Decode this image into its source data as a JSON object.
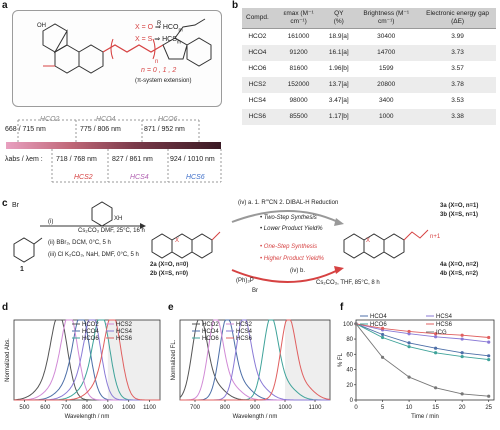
{
  "panels": {
    "a": "a",
    "b": "b",
    "c": "c",
    "d": "d",
    "e": "e",
    "f": "f"
  },
  "panel_a": {
    "substituent": "R",
    "atom_x_eq_o": "X = O",
    "atom_x_eq_s": "X = S",
    "arrow": "⇒",
    "hcom_label": "HCO",
    "hcsm_label": "HCS",
    "hcom_sub": "m",
    "hcsm_sub": "m",
    "n_values": "n = 0 , 1 , 2",
    "ext_note": "(π-system extension)",
    "oh": "OH",
    "n_sub": "n",
    "wl_label_top": "668 / 715 nm",
    "wl_label_o4": "775 / 806 nm",
    "wl_label_o6": "871 / 952 nm",
    "label_o2": "HCO2",
    "label_o4": "HCO4",
    "label_o6": "HCO6",
    "lambda_label": "λabs / λem :",
    "wl_s2": "718 / 768 nm",
    "wl_s4": "827 / 861 nm",
    "wl_s6": "924 / 1010 nm",
    "label_s2": "HCS2",
    "label_s4": "HCS4",
    "label_s6": "HCS6"
  },
  "table": {
    "headers": [
      "Compd.",
      "εmax (M⁻¹ cm⁻¹)",
      "QY (%)",
      "Brightness (M⁻¹ cm⁻¹)",
      "Electronic energy gap (ΔE)"
    ],
    "rows": [
      [
        "HCO2",
        "161000",
        "18.9[a]",
        "30400",
        "3.99"
      ],
      [
        "HCO4",
        "91200",
        "16.1[a]",
        "14700",
        "3.73"
      ],
      [
        "HCO6",
        "81600",
        "1.96[b]",
        "1599",
        "3.57"
      ],
      [
        "HCS2",
        "152000",
        "13.7[a]",
        "20800",
        "3.78"
      ],
      [
        "HCS4",
        "98000",
        "3.47[a]",
        "3400",
        "3.53"
      ],
      [
        "HCS6",
        "85500",
        "1.17[b]",
        "1000",
        "3.38"
      ]
    ]
  },
  "panel_c": {
    "compound1": "1",
    "br": "Br",
    "step_i": "(i)",
    "step_i_cond": "Cs₂CO₃  DMF, 25°C, 16 h",
    "step_ii": "(ii)  BBr₃, DCM, 0°C, 5 h",
    "step_iii": "(iii)     Cl  K₂CO₃, NaH, DMF, 0°C, 5 h",
    "xh": "XH",
    "route_iva": "(iv) a. 1.  R′″CN   2. DIBAL-H Reduction",
    "two_step": "Two-Step Synthesis",
    "lower_yield": "Lower Product Yield%",
    "one_step": "One-Step Synthesis",
    "higher_yield": "Higher Product Yield%",
    "route_ivb": "(iv) b.",
    "ivb_cond": "Cs₂CO₃, THF, 85°C, 8 h",
    "ph3p": "(Ph)₃P",
    "br_minus": "Br",
    "cmp_2a": "2a (X=O, n=0)",
    "cmp_2b": "2b (X=S, n=0)",
    "cmp_3a": "3a (X=O, n=1)",
    "cmp_3b": "3b (X=S, n=1)",
    "cmp_4a": "4a (X=O, n=2)",
    "cmp_4b": "4b (X=S, n=2)",
    "n1": "n+1",
    "x_atom": "X",
    "n_atom": "n"
  },
  "panel_d": {
    "ylabel": "Normalized Abs.",
    "xlabel": "Wavelength / nm",
    "legend": [
      "HCO2",
      "HCO4",
      "HCO6",
      "HCS2",
      "HCS4",
      "HCS6"
    ],
    "xticks": [
      "500",
      "600",
      "700",
      "800",
      "900",
      "1000",
      "1100"
    ]
  },
  "panel_e": {
    "ylabel": "Normalized FL.",
    "xlabel": "Wavelength / nm",
    "legend": [
      "HCO2",
      "HCO4",
      "HCO6",
      "HCS2",
      "HCS4",
      "HCS6"
    ],
    "xticks": [
      "700",
      "800",
      "900",
      "1000",
      "1100"
    ]
  },
  "panel_f": {
    "ylabel": "% FL",
    "xlabel": "Time / min",
    "legend": [
      "HCO4",
      "HCO6",
      "HCS4",
      "HCS6",
      "ICG"
    ],
    "xticks": [
      "0",
      "5",
      "10",
      "15",
      "20",
      "25"
    ],
    "yticks": [
      "0",
      "20",
      "40",
      "60",
      "80",
      "100"
    ]
  },
  "colors": {
    "HCO2": "#555555",
    "HCO4": "#4d6fa8",
    "HCO6": "#3fa39a",
    "HCS2": "#d18ad6",
    "HCS4": "#8a7ad6",
    "HCS6": "#e06060",
    "ICG": "#777777"
  },
  "chart_data": [
    {
      "type": "line",
      "panel": "d",
      "xlabel": "Wavelength / nm",
      "ylabel": "Normalized Abs.",
      "xlim": [
        450,
        1150
      ],
      "ylim": [
        0,
        1.05
      ],
      "series": [
        {
          "name": "HCO2",
          "peak": 668
        },
        {
          "name": "HCO4",
          "peak": 775
        },
        {
          "name": "HCO6",
          "peak": 871
        },
        {
          "name": "HCS2",
          "peak": 718
        },
        {
          "name": "HCS4",
          "peak": 827
        },
        {
          "name": "HCS6",
          "peak": 924
        }
      ]
    },
    {
      "type": "line",
      "panel": "e",
      "xlabel": "Wavelength / nm",
      "ylabel": "Normalized FL.",
      "xlim": [
        650,
        1150
      ],
      "ylim": [
        0,
        1.05
      ],
      "series": [
        {
          "name": "HCO2",
          "peak": 715
        },
        {
          "name": "HCO4",
          "peak": 806
        },
        {
          "name": "HCO6",
          "peak": 952
        },
        {
          "name": "HCS2",
          "peak": 768
        },
        {
          "name": "HCS4",
          "peak": 861
        },
        {
          "name": "HCS6",
          "peak": 1010
        }
      ]
    },
    {
      "type": "line",
      "panel": "f",
      "xlabel": "Time / min",
      "ylabel": "% FL",
      "x": [
        0,
        5,
        10,
        15,
        20,
        25
      ],
      "xlim": [
        0,
        26
      ],
      "ylim": [
        0,
        105
      ],
      "series": [
        {
          "name": "HCO4",
          "values": [
            100,
            86,
            75,
            68,
            62,
            58
          ]
        },
        {
          "name": "HCO6",
          "values": [
            100,
            82,
            70,
            62,
            57,
            53
          ]
        },
        {
          "name": "HCS4",
          "values": [
            100,
            92,
            87,
            83,
            80,
            76
          ]
        },
        {
          "name": "HCS6",
          "values": [
            100,
            94,
            90,
            87,
            85,
            82
          ]
        },
        {
          "name": "ICG",
          "values": [
            100,
            56,
            30,
            16,
            8,
            5
          ]
        }
      ]
    }
  ]
}
